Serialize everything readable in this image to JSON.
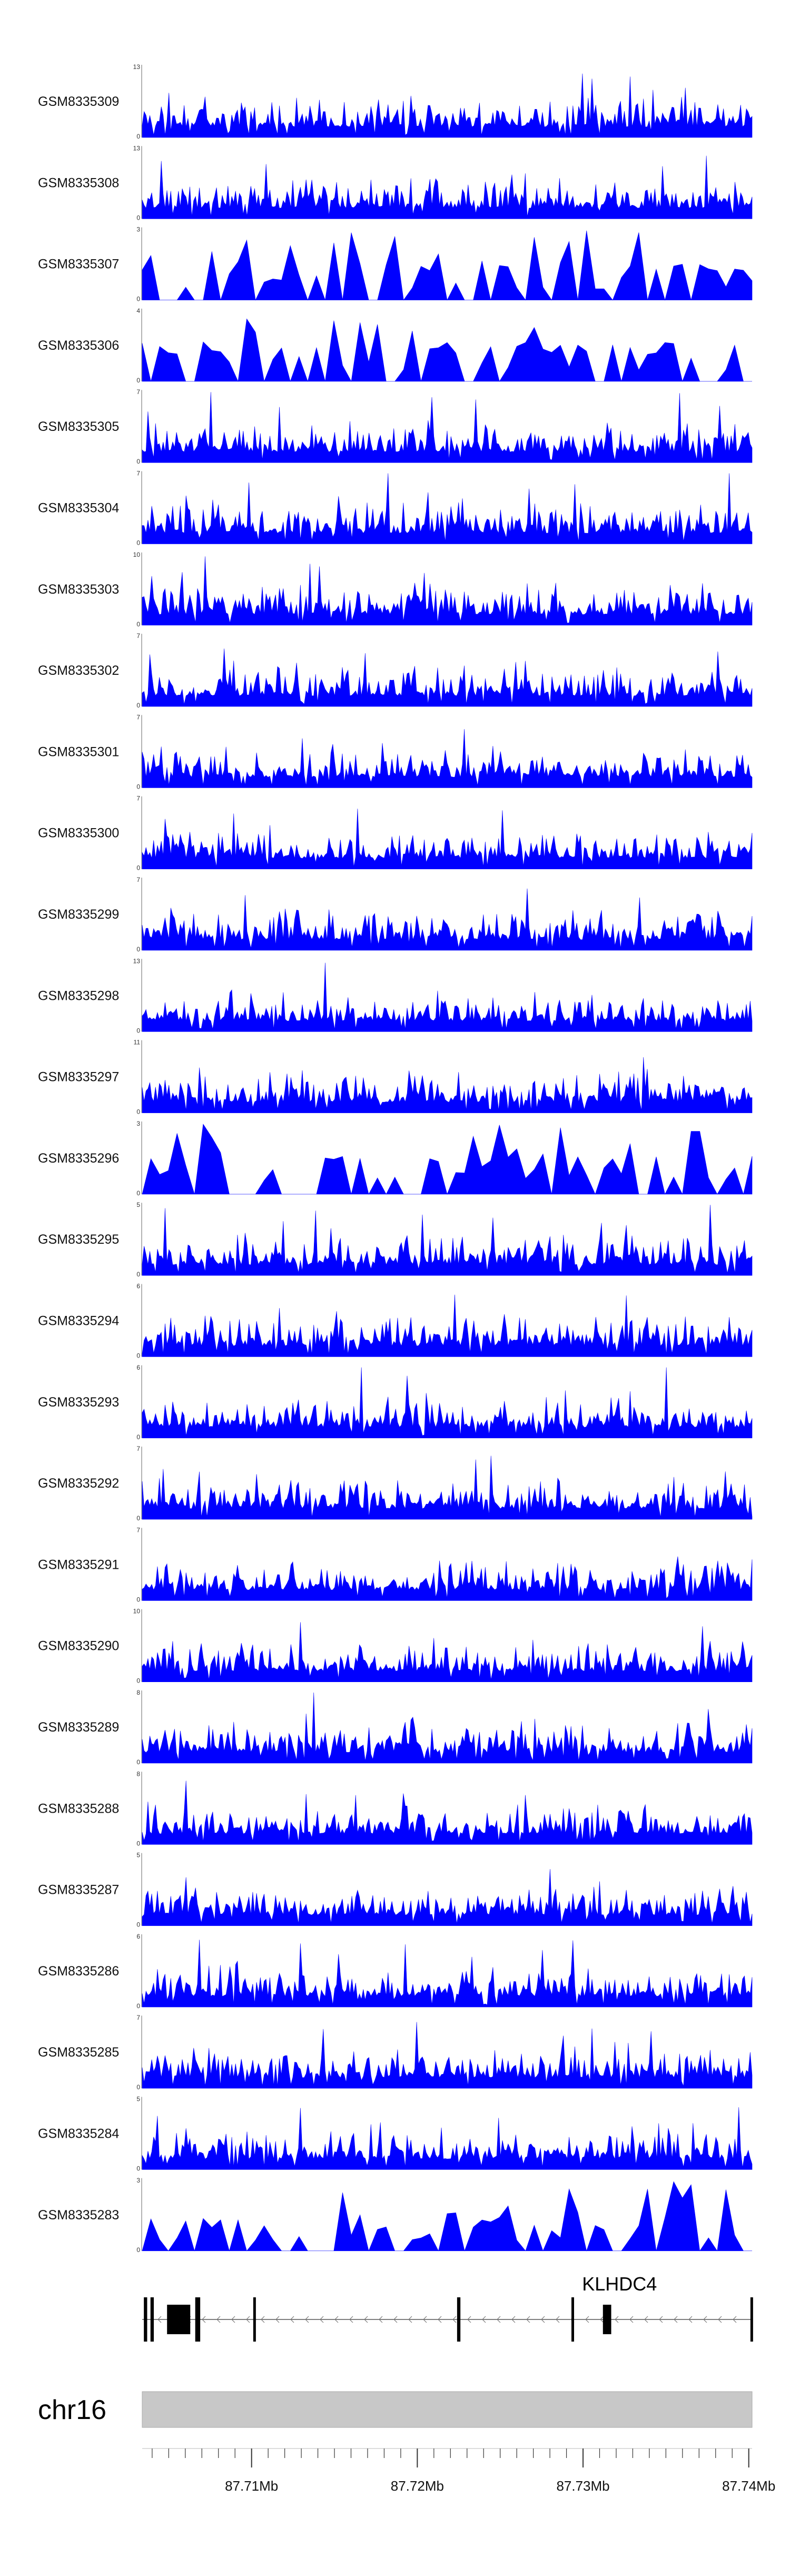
{
  "chart_data": {
    "type": "area",
    "xlabel": "",
    "ylabel": "",
    "chromosome": "chr16",
    "xlim": [
      87.7034,
      87.7402
    ],
    "x_ticks": [
      {
        "value": 87.71,
        "label": "87.71Mb"
      },
      {
        "value": 87.72,
        "label": "87.72Mb"
      },
      {
        "value": 87.73,
        "label": "87.73Mb"
      },
      {
        "value": 87.74,
        "label": "87.74Mb"
      }
    ],
    "gene": {
      "name": "KLHDC4",
      "start": 87.7034,
      "end": 87.7402,
      "strand": "-",
      "exons": [
        {
          "start": 87.7035,
          "end": 87.7037
        },
        {
          "start": 87.7039,
          "end": 87.7041
        },
        {
          "start": 87.7049,
          "end": 87.7063
        },
        {
          "start": 87.7066,
          "end": 87.7069
        },
        {
          "start": 87.7101,
          "end": 87.7102
        },
        {
          "start": 87.7224,
          "end": 87.7226
        },
        {
          "start": 87.7293,
          "end": 87.7294
        },
        {
          "start": 87.7312,
          "end": 87.7317
        },
        {
          "start": 87.7401,
          "end": 87.7402
        }
      ]
    },
    "series": [
      {
        "name": "GSM8335309",
        "ymax": 13,
        "color": "#0000ff"
      },
      {
        "name": "GSM8335308",
        "ymax": 13,
        "color": "#0000ff"
      },
      {
        "name": "GSM8335307",
        "ymax": 3,
        "color": "#0000ff"
      },
      {
        "name": "GSM8335306",
        "ymax": 4,
        "color": "#0000ff"
      },
      {
        "name": "GSM8335305",
        "ymax": 7,
        "color": "#0000ff"
      },
      {
        "name": "GSM8335304",
        "ymax": 7,
        "color": "#0000ff"
      },
      {
        "name": "GSM8335303",
        "ymax": 10,
        "color": "#0000ff"
      },
      {
        "name": "GSM8335302",
        "ymax": 7,
        "color": "#0000ff"
      },
      {
        "name": "GSM8335301",
        "ymax": 7,
        "color": "#0000ff"
      },
      {
        "name": "GSM8335300",
        "ymax": 7,
        "color": "#0000ff"
      },
      {
        "name": "GSM8335299",
        "ymax": 7,
        "color": "#0000ff"
      },
      {
        "name": "GSM8335298",
        "ymax": 13,
        "color": "#0000ff"
      },
      {
        "name": "GSM8335297",
        "ymax": 11,
        "color": "#0000ff"
      },
      {
        "name": "GSM8335296",
        "ymax": 3,
        "color": "#0000ff"
      },
      {
        "name": "GSM8335295",
        "ymax": 5,
        "color": "#0000ff"
      },
      {
        "name": "GSM8335294",
        "ymax": 6,
        "color": "#0000ff"
      },
      {
        "name": "GSM8335293",
        "ymax": 6,
        "color": "#0000ff"
      },
      {
        "name": "GSM8335292",
        "ymax": 7,
        "color": "#0000ff"
      },
      {
        "name": "GSM8335291",
        "ymax": 7,
        "color": "#0000ff"
      },
      {
        "name": "GSM8335290",
        "ymax": 10,
        "color": "#0000ff"
      },
      {
        "name": "GSM8335289",
        "ymax": 8,
        "color": "#0000ff"
      },
      {
        "name": "GSM8335288",
        "ymax": 8,
        "color": "#0000ff"
      },
      {
        "name": "GSM8335287",
        "ymax": 5,
        "color": "#0000ff"
      },
      {
        "name": "GSM8335286",
        "ymax": 6,
        "color": "#0000ff"
      },
      {
        "name": "GSM8335285",
        "ymax": 7,
        "color": "#0000ff"
      },
      {
        "name": "GSM8335284",
        "ymax": 5,
        "color": "#0000ff"
      },
      {
        "name": "GSM8335283",
        "ymax": 3,
        "color": "#0000ff"
      }
    ],
    "track_color": "#0000ff",
    "ideogram_color": "#c8c8c8",
    "grid": false,
    "legend": "none"
  }
}
